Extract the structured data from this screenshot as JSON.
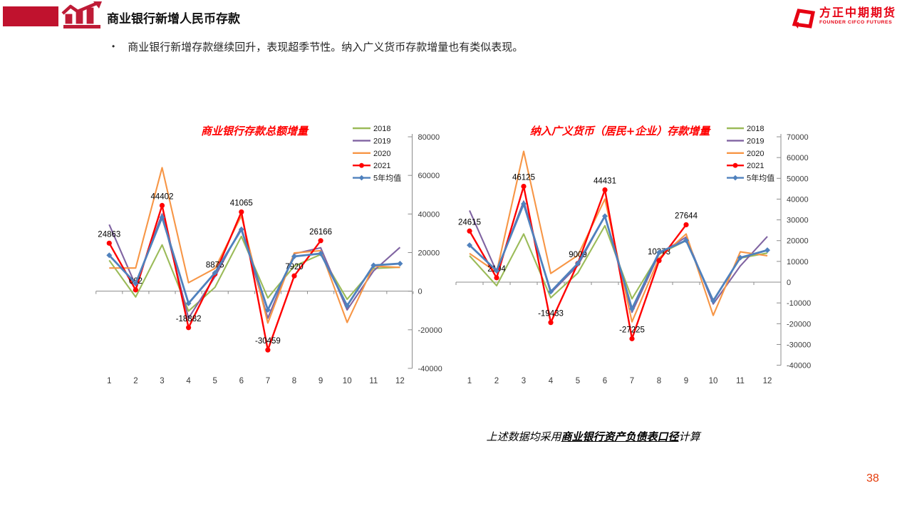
{
  "header": {
    "title": "商业银行新增人民币存款"
  },
  "logo": {
    "name_cn": "方正中期期货",
    "name_en": "FOUNDER CIFCO FUTURES"
  },
  "bullet": {
    "marker": "•",
    "text": "商业银行新增存款继续回升，表现超季节性。纳入广义货币存款增量也有类似表现。"
  },
  "footnote": {
    "prefix": "上述数据均采用",
    "emphasis": "商业银行资产负债表口径",
    "suffix": "计算"
  },
  "page_number": "38",
  "colors": {
    "banner_red": "#C0122E",
    "icon_red": "#BE1B36",
    "logo_red": "#E60012",
    "chart_title_red": "#FF0000",
    "page_number_red": "#E43C0C",
    "series_2018": "#9BBB59",
    "series_2019": "#8064A2",
    "series_2020": "#F79646",
    "series_2021": "#FF0000",
    "series_avg": "#4F81BD",
    "axis_gray": "#8C8C8C"
  },
  "chart_data": [
    {
      "type": "line",
      "title": "商业银行存款总额增量",
      "title_color": "#FF0000",
      "categories": [
        1,
        2,
        3,
        4,
        5,
        6,
        7,
        8,
        9,
        10,
        11,
        12
      ],
      "ylim": [
        -40000,
        80000
      ],
      "ytick_step": 20000,
      "axis_side": "right",
      "grid": false,
      "legend_position": "top-right",
      "series": [
        {
          "name": "2018",
          "color": "#9BBB59",
          "marker": "none",
          "show_labels": false,
          "values": [
            16000,
            -3000,
            24000,
            -10300,
            2000,
            28400,
            -3500,
            13000,
            19000,
            -4200,
            11800,
            12400
          ]
        },
        {
          "name": "2019",
          "color": "#8064A2",
          "marker": "none",
          "show_labels": false,
          "values": [
            34500,
            3000,
            40000,
            -14000,
            7500,
            33000,
            -14000,
            19400,
            22500,
            -9700,
            10500,
            22700
          ]
        },
        {
          "name": "2020",
          "color": "#F79646",
          "marker": "none",
          "show_labels": false,
          "values": [
            12000,
            12000,
            64000,
            4400,
            11800,
            39000,
            -16500,
            19800,
            21000,
            -16200,
            13000,
            12300
          ]
        },
        {
          "name": "2021",
          "color": "#FF0000",
          "marker": "circle",
          "show_labels": true,
          "values": [
            24863,
            662,
            44402,
            -18882,
            8875,
            41065,
            -30459,
            7920,
            26166
          ]
        },
        {
          "name": "5年均值",
          "color": "#4F81BD",
          "marker": "diamond",
          "show_labels": false,
          "values": [
            18600,
            4000,
            38300,
            -6300,
            9500,
            32000,
            -9700,
            18000,
            19500,
            -7500,
            13400,
            14300
          ]
        }
      ]
    },
    {
      "type": "line",
      "title": "纳入广义货币（居民+企业）存款增量",
      "title_color": "#FF0000",
      "categories": [
        1,
        2,
        3,
        4,
        5,
        6,
        7,
        8,
        9,
        10,
        11,
        12
      ],
      "ylim": [
        -40000,
        70000
      ],
      "ytick_step": 10000,
      "axis_side": "right",
      "grid": false,
      "legend_position": "top-right",
      "series": [
        {
          "name": "2018",
          "color": "#9BBB59",
          "marker": "none",
          "show_labels": false,
          "values": [
            12700,
            -1700,
            23200,
            -7500,
            4400,
            27200,
            -8000,
            13500,
            20000,
            -8800,
            11600,
            14000
          ]
        },
        {
          "name": "2019",
          "color": "#8064A2",
          "marker": "none",
          "show_labels": false,
          "values": [
            34500,
            5000,
            39000,
            -5200,
            8000,
            32000,
            -14500,
            13600,
            21700,
            -10500,
            7800,
            22000
          ]
        },
        {
          "name": "2020",
          "color": "#F79646",
          "marker": "none",
          "show_labels": false,
          "values": [
            13800,
            4800,
            63000,
            4200,
            12900,
            40000,
            -19100,
            11600,
            23200,
            -16000,
            14600,
            12700
          ]
        },
        {
          "name": "2021",
          "color": "#FF0000",
          "marker": "circle",
          "show_labels": true,
          "values": [
            24615,
            2104,
            46125,
            -19433,
            9009,
            44431,
            -27225,
            10373,
            27644
          ]
        },
        {
          "name": "5年均值",
          "color": "#4F81BD",
          "marker": "diamond",
          "show_labels": false,
          "values": [
            17800,
            5500,
            37700,
            -4600,
            9000,
            31800,
            -12800,
            14300,
            20100,
            -9000,
            11800,
            15400
          ]
        }
      ]
    }
  ]
}
